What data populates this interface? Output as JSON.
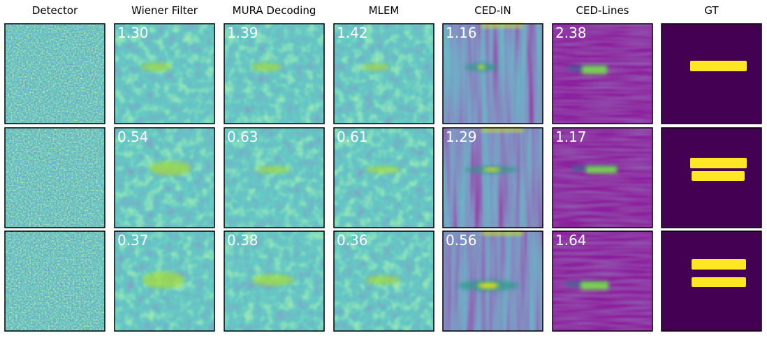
{
  "columns": [
    "Detector",
    "Wiener Filter",
    "MURA Decoding",
    "MLEM",
    "CED-IN",
    "CED-Lines",
    "GT"
  ],
  "rows": [
    {
      "scores": [
        "1.30",
        "1.39",
        "1.42",
        "1.16",
        "2.38"
      ]
    },
    {
      "scores": [
        "0.54",
        "0.63",
        "0.61",
        "1.29",
        "1.17"
      ]
    },
    {
      "scores": [
        "0.37",
        "0.38",
        "0.36",
        "0.56",
        "1.64"
      ]
    }
  ]
}
